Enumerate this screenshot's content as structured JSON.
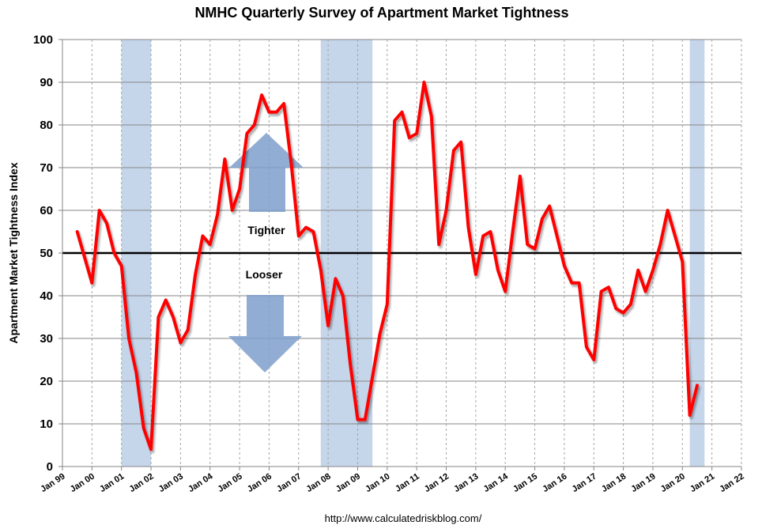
{
  "chart_data": {
    "type": "line",
    "title": "NMHC Quarterly Survey of Apartment Market Tightness",
    "ylabel": "Apartment Market Tightness Index",
    "xlabel": "",
    "ylim": [
      0,
      100
    ],
    "yticks": [
      0,
      10,
      20,
      30,
      40,
      50,
      60,
      70,
      80,
      90,
      100
    ],
    "xlim": [
      1999.0,
      2022.0
    ],
    "x_tick_values": [
      1999,
      2000,
      2001,
      2002,
      2003,
      2004,
      2005,
      2006,
      2007,
      2008,
      2009,
      2010,
      2011,
      2012,
      2013,
      2014,
      2015,
      2016,
      2017,
      2018,
      2019,
      2020,
      2021,
      2022
    ],
    "x_tick_labels": [
      "Jan 99",
      "Jan 00",
      "Jan 01",
      "Jan 02",
      "Jan 03",
      "Jan 04",
      "Jan 05",
      "Jan 06",
      "Jan 07",
      "Jan 08",
      "Jan 09",
      "Jan 10",
      "Jan 11",
      "Jan 12",
      "Jan 13",
      "Jan 14",
      "Jan 15",
      "Jan 16",
      "Jan 17",
      "Jan 18",
      "Jan 19",
      "Jan 20",
      "Jan 21",
      "Jan 22"
    ],
    "grid": true,
    "recessions": [
      {
        "start": 2001.0,
        "end": 2002.0
      },
      {
        "start": 2007.75,
        "end": 2009.5
      },
      {
        "start": 2020.25,
        "end": 2020.75
      }
    ],
    "reference_line": 50,
    "annotations": {
      "tighter": "Tighter",
      "looser": "Looser"
    },
    "series": [
      {
        "name": "Apartment Market Tightness Index",
        "color": "#ff0000",
        "x": [
          1999.5,
          1999.75,
          2000.0,
          2000.25,
          2000.5,
          2000.75,
          2001.0,
          2001.25,
          2001.5,
          2001.75,
          2002.0,
          2002.25,
          2002.5,
          2002.75,
          2003.0,
          2003.25,
          2003.5,
          2003.75,
          2004.0,
          2004.25,
          2004.5,
          2004.75,
          2005.0,
          2005.25,
          2005.5,
          2005.75,
          2006.0,
          2006.25,
          2006.5,
          2006.75,
          2007.0,
          2007.25,
          2007.5,
          2007.75,
          2008.0,
          2008.25,
          2008.5,
          2008.75,
          2009.0,
          2009.25,
          2009.5,
          2009.75,
          2010.0,
          2010.25,
          2010.5,
          2010.75,
          2011.0,
          2011.25,
          2011.5,
          2011.75,
          2012.0,
          2012.25,
          2012.5,
          2012.75,
          2013.0,
          2013.25,
          2013.5,
          2013.75,
          2014.0,
          2014.25,
          2014.5,
          2014.75,
          2015.0,
          2015.25,
          2015.5,
          2015.75,
          2016.0,
          2016.25,
          2016.5,
          2016.75,
          2017.0,
          2017.25,
          2017.5,
          2017.75,
          2018.0,
          2018.25,
          2018.5,
          2018.75,
          2019.0,
          2019.25,
          2019.5,
          2019.75,
          2020.0,
          2020.25,
          2020.5
        ],
        "values": [
          55,
          49,
          43,
          60,
          57,
          50,
          47,
          30,
          22,
          9,
          4,
          35,
          39,
          35,
          29,
          32,
          45,
          54,
          52,
          59,
          72,
          60,
          65,
          78,
          80,
          87,
          83,
          83,
          85,
          71,
          54,
          56,
          55,
          46,
          33,
          44,
          40,
          24,
          11,
          11,
          21,
          31,
          38,
          81,
          83,
          77,
          78,
          90,
          82,
          52,
          60,
          74,
          76,
          56,
          45,
          54,
          55,
          46,
          41,
          55,
          68,
          52,
          51,
          58,
          61,
          54,
          47,
          43,
          43,
          28,
          25,
          41,
          42,
          37,
          36,
          38,
          46,
          41,
          46,
          52,
          60,
          54,
          48,
          12,
          19
        ]
      }
    ]
  },
  "footer": {
    "source": "http://www.calculatedriskblog.com/"
  }
}
